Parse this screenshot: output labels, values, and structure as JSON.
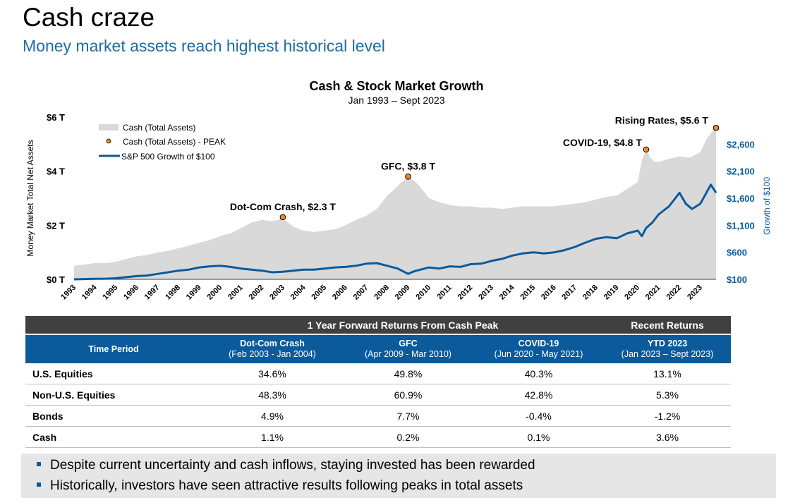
{
  "page": {
    "title": "Cash craze",
    "subtitle": "Money market assets reach highest historical level"
  },
  "chart_data": {
    "type": "area",
    "title": "Cash & Stock Market Growth",
    "subtitle": "Jan 1993 – Sept 2023",
    "ylabel": "Money Market Total Net Assets",
    "y2label": "Growth of $100",
    "ylim": [
      0,
      6
    ],
    "y2lim": [
      100,
      3100
    ],
    "yticks": [
      0,
      2,
      4,
      6
    ],
    "ytick_labels": [
      "$0 T",
      "$2 T",
      "$4 T",
      "$6 T"
    ],
    "y2ticks": [
      100,
      600,
      1100,
      1600,
      2100,
      2600
    ],
    "y2tick_labels": [
      "$100",
      "$600",
      "$1,100",
      "$1,600",
      "$2,100",
      "$2,600"
    ],
    "xlim": [
      1993,
      2023.75
    ],
    "xticks": [
      "1993",
      "1994",
      "1995",
      "1996",
      "1997",
      "1998",
      "1999",
      "2000",
      "2001",
      "2002",
      "2003",
      "2004",
      "2005",
      "2006",
      "2007",
      "2008",
      "2009",
      "2010",
      "2011",
      "2012",
      "2013",
      "2014",
      "2015",
      "2016",
      "2017",
      "2018",
      "2019",
      "2020",
      "2021",
      "2022",
      "2023"
    ],
    "legend": {
      "placement": "top-left",
      "entries": [
        "Cash (Total Assets)",
        "Cash (Total Assets) - PEAK",
        "S&P 500 Growth of $100"
      ]
    },
    "colors": {
      "cash": "#d9d9d9",
      "sp500": "#0a5a9c",
      "peak": "#f08a24"
    },
    "series": [
      {
        "name": "Cash (Total Assets)",
        "axis": "left",
        "x": [
          1993.0,
          1993.5,
          1994.0,
          1994.5,
          1995.0,
          1995.5,
          1996.0,
          1996.5,
          1997.0,
          1997.5,
          1998.0,
          1998.5,
          1999.0,
          1999.5,
          2000.0,
          2000.5,
          2001.0,
          2001.5,
          2002.0,
          2002.5,
          2003.0,
          2003.5,
          2004.0,
          2004.5,
          2005.0,
          2005.5,
          2006.0,
          2006.5,
          2007.0,
          2007.5,
          2008.0,
          2008.3,
          2008.7,
          2009.0,
          2009.3,
          2009.6,
          2010.0,
          2010.5,
          2011.0,
          2011.5,
          2012.0,
          2012.5,
          2013.0,
          2013.5,
          2014.0,
          2014.5,
          2015.0,
          2015.5,
          2016.0,
          2016.5,
          2017.0,
          2017.5,
          2018.0,
          2018.5,
          2019.0,
          2019.5,
          2020.0,
          2020.2,
          2020.4,
          2020.6,
          2020.8,
          2021.0,
          2021.5,
          2022.0,
          2022.5,
          2023.0,
          2023.3,
          2023.5,
          2023.75
        ],
        "values": [
          0.5,
          0.55,
          0.6,
          0.6,
          0.65,
          0.75,
          0.85,
          0.9,
          1.0,
          1.05,
          1.15,
          1.25,
          1.35,
          1.45,
          1.6,
          1.7,
          1.9,
          2.1,
          2.2,
          2.15,
          2.25,
          1.95,
          1.8,
          1.75,
          1.8,
          1.85,
          2.0,
          2.2,
          2.35,
          2.6,
          3.1,
          3.3,
          3.6,
          3.8,
          3.65,
          3.4,
          3.0,
          2.85,
          2.75,
          2.7,
          2.7,
          2.65,
          2.65,
          2.6,
          2.65,
          2.7,
          2.7,
          2.7,
          2.7,
          2.75,
          2.8,
          2.85,
          2.95,
          3.05,
          3.1,
          3.35,
          3.6,
          4.4,
          4.8,
          4.5,
          4.35,
          4.35,
          4.45,
          4.55,
          4.5,
          4.7,
          5.2,
          5.4,
          5.6
        ]
      },
      {
        "name": "S&P 500 Growth of $100",
        "axis": "right",
        "x": [
          1993.0,
          1993.5,
          1994.0,
          1994.5,
          1995.0,
          1995.5,
          1996.0,
          1996.5,
          1997.0,
          1997.5,
          1998.0,
          1998.5,
          1999.0,
          1999.5,
          2000.0,
          2000.5,
          2001.0,
          2001.5,
          2002.0,
          2002.5,
          2003.0,
          2003.5,
          2004.0,
          2004.5,
          2005.0,
          2005.5,
          2006.0,
          2006.5,
          2007.0,
          2007.5,
          2008.0,
          2008.5,
          2009.0,
          2009.3,
          2009.6,
          2010.0,
          2010.5,
          2011.0,
          2011.5,
          2012.0,
          2012.5,
          2013.0,
          2013.5,
          2014.0,
          2014.5,
          2015.0,
          2015.5,
          2016.0,
          2016.5,
          2017.0,
          2017.5,
          2018.0,
          2018.5,
          2019.0,
          2019.5,
          2020.0,
          2020.2,
          2020.4,
          2020.7,
          2021.0,
          2021.5,
          2022.0,
          2022.3,
          2022.6,
          2022.8,
          2023.0,
          2023.5,
          2023.75
        ],
        "values": [
          100,
          105,
          110,
          112,
          120,
          140,
          160,
          170,
          200,
          230,
          260,
          280,
          320,
          340,
          350,
          330,
          300,
          280,
          260,
          230,
          240,
          260,
          280,
          280,
          300,
          320,
          330,
          350,
          390,
          400,
          350,
          300,
          200,
          250,
          280,
          320,
          300,
          340,
          330,
          380,
          390,
          440,
          480,
          540,
          580,
          600,
          580,
          600,
          640,
          700,
          780,
          850,
          880,
          860,
          950,
          1000,
          900,
          1050,
          1150,
          1300,
          1450,
          1700,
          1500,
          1400,
          1450,
          1500,
          1850,
          1700
        ]
      }
    ],
    "annotations": [
      {
        "label": "Dot-Com Crash, $2.3 T",
        "x": 2003.0,
        "y": 2.3
      },
      {
        "label": "GFC, $3.8 T",
        "x": 2009.0,
        "y": 3.8
      },
      {
        "label": "COVID-19, $4.8 T",
        "x": 2020.4,
        "y": 4.8
      },
      {
        "label": "Rising Rates, $5.6 T",
        "x": 2023.75,
        "y": 5.6
      }
    ]
  },
  "table": {
    "group_headers": [
      "1 Year Forward Returns From Cash Peak",
      "Recent Returns"
    ],
    "columns": [
      {
        "title": "Time Period",
        "sub": ""
      },
      {
        "title": "Dot-Com Crash",
        "sub": "(Feb 2003 - Jan 2004)"
      },
      {
        "title": "GFC",
        "sub": "(Apr 2009 - Mar 2010)"
      },
      {
        "title": "COVID-19",
        "sub": "(Jun 2020 - May 2021)"
      },
      {
        "title": "YTD 2023",
        "sub": "(Jan 2023 – Sept 2023)"
      }
    ],
    "rows": [
      [
        "U.S. Equities",
        "34.6%",
        "49.8%",
        "40.3%",
        "13.1%"
      ],
      [
        "Non-U.S. Equities",
        "48.3%",
        "60.9%",
        "42.8%",
        "5.3%"
      ],
      [
        "Bonds",
        "4.9%",
        "7.7%",
        "-0.4%",
        "-1.2%"
      ],
      [
        "Cash",
        "1.1%",
        "0.2%",
        "0.1%",
        "3.6%"
      ]
    ]
  },
  "notes": [
    "Despite current uncertainty and cash inflows, staying invested has been rewarded",
    "Historically, investors have seen attractive results following peaks in total assets"
  ]
}
